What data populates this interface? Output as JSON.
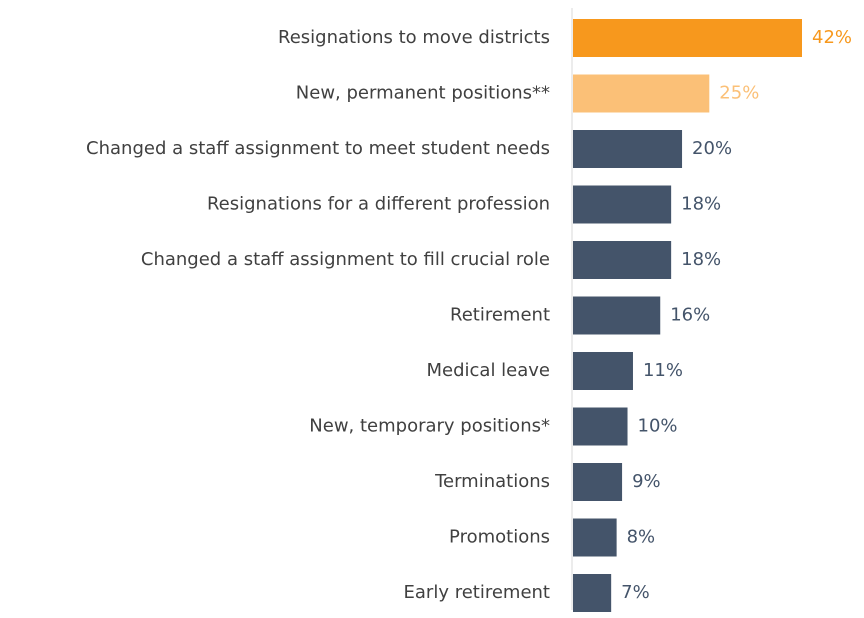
{
  "chart_data": {
    "type": "bar",
    "orientation": "horizontal",
    "categories": [
      "Resignations to move districts",
      "New, permanent positions**",
      "Changed a staff assignment to meet student needs",
      "Resignations for a different profession",
      "Changed a staff assignment to fill crucial role",
      "Retirement",
      "Medical leave",
      "New, temporary positions*",
      "Terminations",
      "Promotions",
      "Early retirement"
    ],
    "values": [
      42,
      25,
      20,
      18,
      18,
      16,
      11,
      10,
      9,
      8,
      7
    ],
    "value_labels": [
      "42%",
      "25%",
      "20%",
      "18%",
      "18%",
      "16%",
      "11%",
      "10%",
      "9%",
      "8%",
      "7%"
    ],
    "colors": [
      "#f7981d",
      "#fbc077",
      "#44546a",
      "#44546a",
      "#44546a",
      "#44546a",
      "#44546a",
      "#44546a",
      "#44546a",
      "#44546a",
      "#44546a"
    ]
  }
}
